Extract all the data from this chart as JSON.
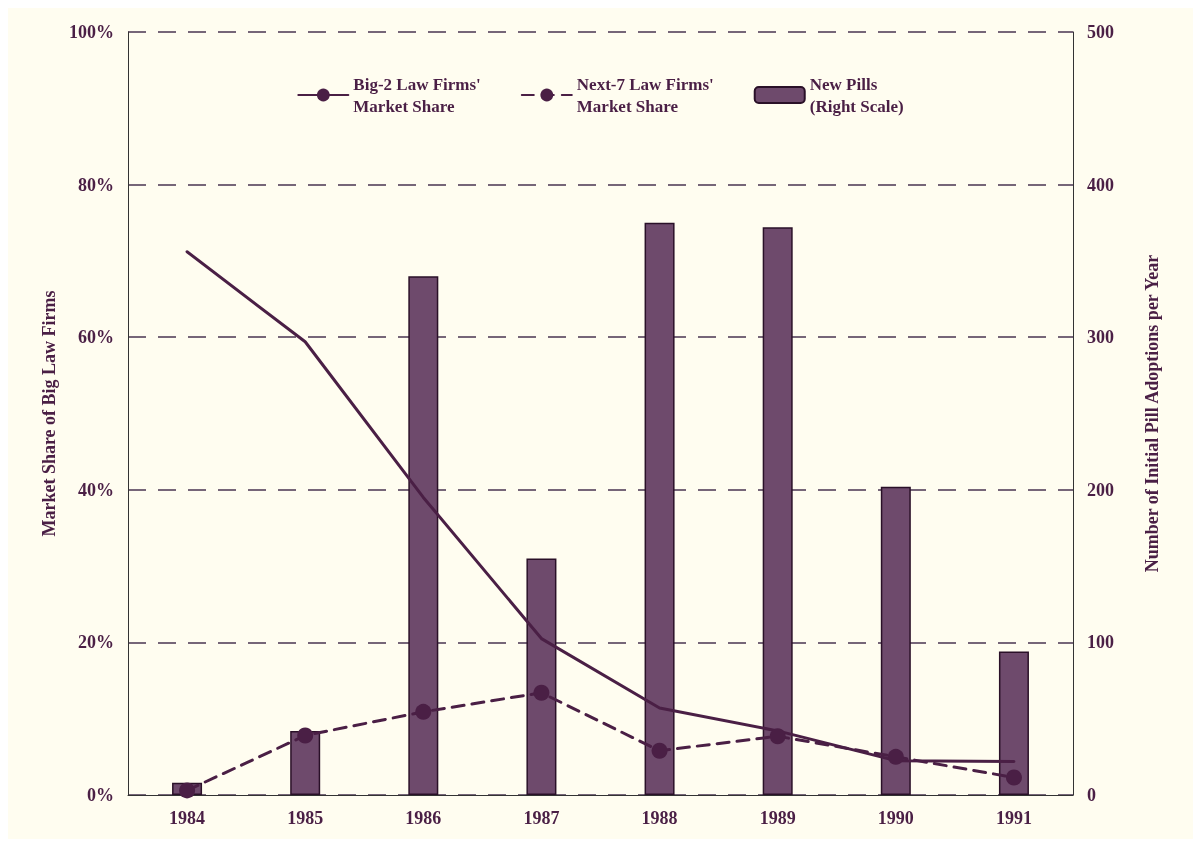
{
  "chart_data": {
    "type": "bar",
    "ylabel": "Market Share of Big Law Firms",
    "y2label": "Number of Initial Pill Adoptions per Year",
    "categories": [
      "1984",
      "1985",
      "1986",
      "1987",
      "1988",
      "1989",
      "1990",
      "1991"
    ],
    "series": [
      {
        "name": "Big-2 Law Firms'\nMarket Share",
        "type": "line",
        "color": "#4a1f45",
        "marker": "none",
        "line_style": "solid",
        "values": [
          71.2,
          59.4,
          39,
          20.5,
          11.4,
          8.4,
          4.5,
          4.4
        ]
      },
      {
        "name": "Next-7 Law Firms'\nMarket Share",
        "type": "line",
        "color": "#4a1f45",
        "marker": "circle",
        "line_style": "dashed",
        "values": [
          0.6,
          7.8,
          10.9,
          13.4,
          5.8,
          7.7,
          5.0,
          2.3
        ]
      },
      {
        "name": "New Pills\n(Right Scale)",
        "type": "bar",
        "axis": "y2",
        "color": "#6e4a6c",
        "values": [
          8,
          42,
          340,
          155,
          375,
          372,
          202,
          94
        ]
      }
    ],
    "ylim": [
      0,
      100
    ],
    "yticks": [
      {
        "value": 0,
        "label": "0%"
      },
      {
        "value": 20,
        "label": "20%"
      },
      {
        "value": 40,
        "label": "40%"
      },
      {
        "value": 60,
        "label": "60%"
      },
      {
        "value": 80,
        "label": "80%"
      },
      {
        "value": 100,
        "label": "100%"
      }
    ],
    "y2lim": [
      0,
      500
    ],
    "y2ticks": [
      0,
      100,
      200,
      300,
      400,
      500
    ],
    "grid": "y",
    "legend": "top"
  }
}
